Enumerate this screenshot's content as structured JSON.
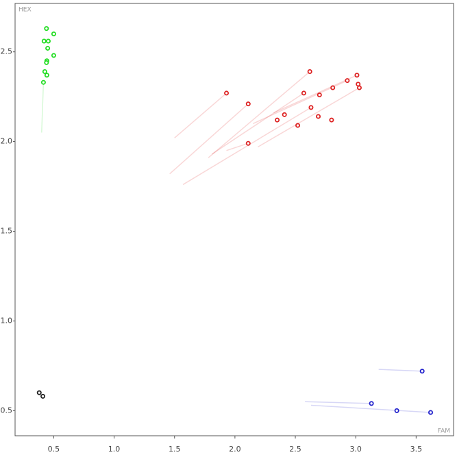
{
  "chart_data": {
    "type": "scatter",
    "x_label": "FAM",
    "y_label": "HEX",
    "xlim": [
      0.18,
      3.81
    ],
    "ylim": [
      0.36,
      2.77
    ],
    "xticks": [
      0.5,
      {
        "value": 1.0,
        "label": "1.0"
      },
      1.5,
      {
        "value": 2.0,
        "label": "2.0"
      },
      2.5,
      {
        "value": 3.0,
        "label": "3.0"
      },
      3.5
    ],
    "yticks": [
      0.5,
      {
        "value": 1.0,
        "label": "1.0"
      },
      1.5,
      {
        "value": 2.0,
        "label": "2.0"
      },
      2.5
    ],
    "grid": false,
    "series": [
      {
        "color": "#22dd22",
        "x": [
          0.44,
          0.5,
          0.42,
          0.455,
          0.45,
          0.5,
          0.443,
          0.44,
          0.426,
          0.443,
          0.415
        ],
        "values": [
          2.63,
          2.6,
          2.56,
          2.56,
          2.52,
          2.48,
          2.45,
          2.44,
          2.39,
          2.37,
          2.33
        ],
        "tail_x": [
          null,
          null,
          null,
          null,
          null,
          null,
          null,
          null,
          null,
          null,
          0.4
        ],
        "tail_y": [
          null,
          null,
          null,
          null,
          null,
          null,
          null,
          null,
          null,
          null,
          2.05
        ]
      },
      {
        "color": "#dd2222",
        "x": [
          1.93,
          2.11,
          2.62,
          2.57,
          3.01,
          2.93,
          2.81,
          3.02,
          3.03,
          2.7,
          2.63,
          2.41,
          2.35,
          2.69,
          2.8,
          2.52,
          2.11
        ],
        "values": [
          2.27,
          2.21,
          2.39,
          2.27,
          2.37,
          2.34,
          2.3,
          2.32,
          2.3,
          2.26,
          2.19,
          2.15,
          2.12,
          2.14,
          2.12,
          2.09,
          1.99
        ],
        "tail_x": [
          1.5,
          1.46,
          1.78,
          1.81,
          2.32,
          2.15,
          null,
          null,
          2.19,
          null,
          1.57,
          null,
          null,
          null,
          null,
          null,
          1.93
        ],
        "tail_y": [
          2.02,
          1.82,
          1.91,
          1.93,
          2.16,
          2.1,
          null,
          null,
          1.97,
          null,
          1.76,
          null,
          null,
          null,
          null,
          null,
          1.95
        ]
      },
      {
        "color": "#2222cc",
        "x": [
          3.55,
          3.13,
          3.34,
          3.62
        ],
        "values": [
          0.72,
          0.54,
          0.5,
          0.49
        ],
        "tail_x": [
          3.19,
          2.58,
          null,
          2.63
        ],
        "tail_y": [
          0.73,
          0.55,
          null,
          0.53
        ]
      },
      {
        "color": "#222222",
        "x": [
          0.38,
          0.41
        ],
        "values": [
          0.6,
          0.58
        ],
        "tail_x": [
          null,
          null
        ],
        "tail_y": [
          null,
          null
        ]
      }
    ]
  }
}
